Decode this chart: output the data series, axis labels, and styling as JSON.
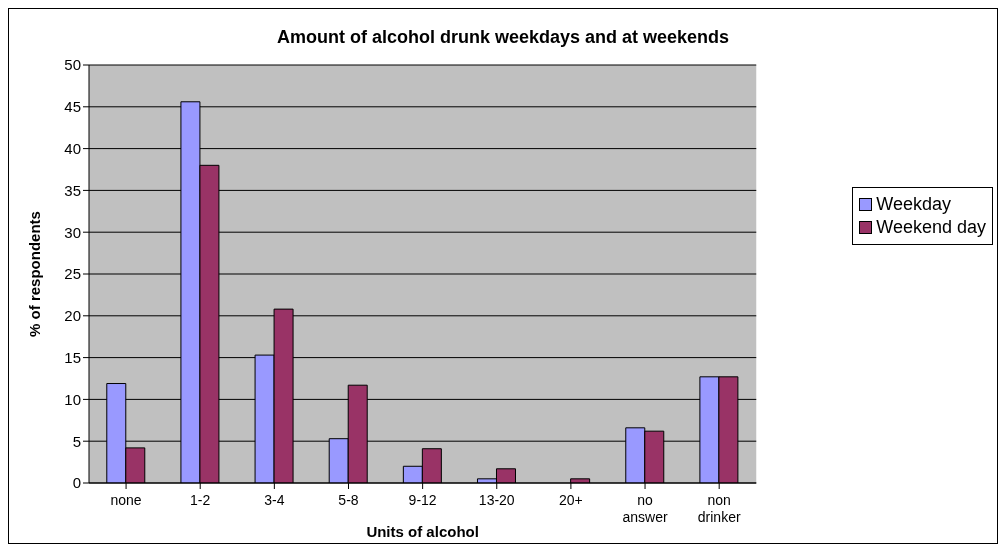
{
  "chart_data": {
    "type": "bar",
    "title": "Amount of alcohol drunk weekdays and at weekends",
    "xlabel": "Units of alcohol",
    "ylabel": "% of respondents",
    "categories": [
      "none",
      "1-2",
      "3-4",
      "5-8",
      "9-12",
      "13-20",
      "20+",
      "no answer",
      "non drinker"
    ],
    "series": [
      {
        "name": "Weekday",
        "color": "#9999ff",
        "values": [
          11.9,
          45.6,
          15.3,
          5.3,
          2.0,
          0.5,
          0,
          6.6,
          12.7
        ]
      },
      {
        "name": "Weekend day",
        "color": "#993366",
        "values": [
          4.2,
          38.0,
          20.8,
          11.7,
          4.1,
          1.7,
          0.5,
          6.2,
          12.7
        ]
      }
    ],
    "ylim": [
      0,
      50
    ],
    "yticks": [
      0,
      5,
      10,
      15,
      20,
      25,
      30,
      35,
      40,
      45,
      50
    ],
    "grid": "y",
    "legend": "right"
  }
}
